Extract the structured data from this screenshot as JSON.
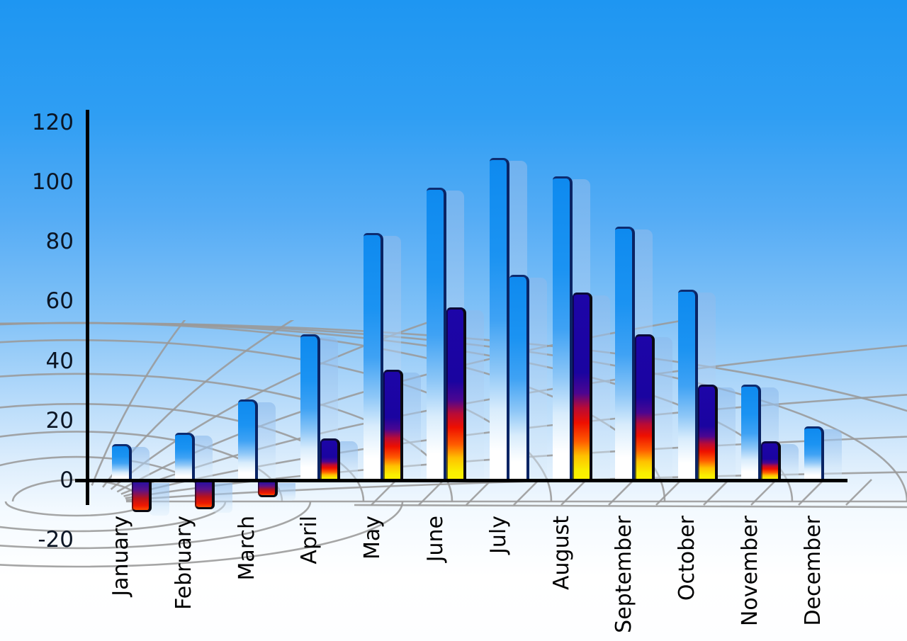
{
  "chart_data": {
    "type": "bar",
    "title": "",
    "xlabel": "",
    "ylabel": "",
    "categories": [
      "January",
      "February",
      "March",
      "April",
      "May",
      "June",
      "July",
      "August",
      "September",
      "October",
      "November",
      "December"
    ],
    "series": [
      {
        "name": "primary-blue-bars",
        "values": [
          12,
          16,
          27,
          49,
          83,
          98,
          108,
          102,
          85,
          64,
          32,
          18
        ]
      },
      {
        "name": "secondary-accent-bars",
        "values": [
          -10,
          -9,
          -5,
          14,
          37,
          58,
          69,
          63,
          49,
          32,
          13,
          null
        ]
      }
    ],
    "secondary_bar_style": [
      "flame-negative",
      "flame-negative",
      "flame-negative",
      "flame",
      "flame",
      "flame",
      "blue",
      "flame",
      "flame",
      "flame",
      "flame",
      "none"
    ],
    "y_axis": {
      "ticks": [
        120,
        100,
        80,
        60,
        40,
        20,
        0,
        -20
      ],
      "min": -20,
      "max": 120
    },
    "legend_position": "none",
    "grid": "perspective-floor-arcs"
  },
  "colors": {
    "sky_top": "#1e96f2",
    "sky_bottom": "#ffffff",
    "bar_blue": "#1190f1",
    "bar_blue_edge": "#0a2464",
    "flame_navy": "#1b03a3",
    "flame_red": "#ee0f00",
    "flame_yellow": "#f9ef00",
    "shadow_blue": "#b9d7f5",
    "grid_line": "#9a9a9a",
    "axis": "#000000",
    "label_text": "#0b1524"
  }
}
